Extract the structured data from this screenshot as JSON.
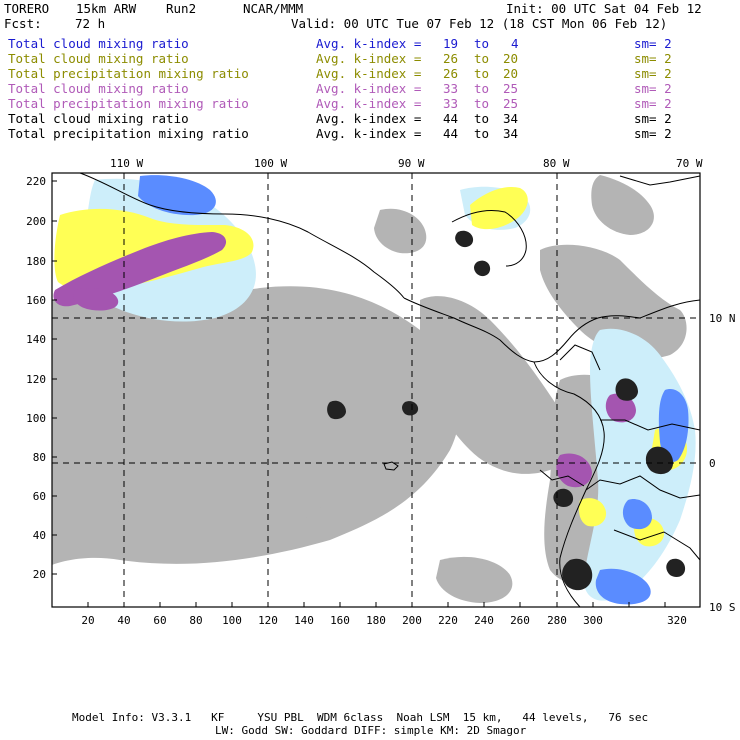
{
  "header": {
    "model": "TORERO",
    "resolution": "15km ARW",
    "run": "Run2",
    "org": "NCAR/MMM",
    "init": "Init: 00 UTC Sat 04 Feb 12",
    "fcst_label": "Fcst:",
    "fcst_value": "72 h",
    "valid": "Valid: 00 UTC Tue 07 Feb 12 (18 CST Mon 06 Feb 12)"
  },
  "legend": [
    {
      "field": "Total cloud mixing ratio",
      "kindex": "Avg. k-index =",
      "from": "19",
      "to_word": "to",
      "to": "4",
      "sm": "sm= 2",
      "color": "#1a1ad0"
    },
    {
      "field": "Total cloud mixing ratio",
      "kindex": "Avg. k-index =",
      "from": "26",
      "to_word": "to",
      "to": "20",
      "sm": "sm= 2",
      "color": "#8c8c00"
    },
    {
      "field": "Total precipitation mixing ratio",
      "kindex": "Avg. k-index =",
      "from": "26",
      "to_word": "to",
      "to": "20",
      "sm": "sm= 2",
      "color": "#8c8c00"
    },
    {
      "field": "Total cloud mixing ratio",
      "kindex": "Avg. k-index =",
      "from": "33",
      "to_word": "to",
      "to": "25",
      "sm": "sm= 2",
      "color": "#b05ab8"
    },
    {
      "field": "Total precipitation mixing ratio",
      "kindex": "Avg. k-index =",
      "from": "33",
      "to_word": "to",
      "to": "25",
      "sm": "sm= 2",
      "color": "#b05ab8"
    },
    {
      "field": "Total cloud mixing ratio",
      "kindex": "Avg. k-index =",
      "from": "44",
      "to_word": "to",
      "to": "34",
      "sm": "sm= 2",
      "color": "#000000"
    },
    {
      "field": "Total precipitation mixing ratio",
      "kindex": "Avg. k-index =",
      "from": "44",
      "to_word": "to",
      "to": "34",
      "sm": "sm= 2",
      "color": "#000000"
    }
  ],
  "map": {
    "lon_labels": [
      "110 W",
      "100 W",
      "90 W",
      "80 W",
      "70 W"
    ],
    "lat_labels": [
      "10 N",
      "0",
      "10 S"
    ],
    "y_ticks": [
      "20",
      "40",
      "60",
      "80",
      "100",
      "120",
      "140",
      "160",
      "180",
      "200",
      "220"
    ],
    "x_ticks": [
      "20",
      "40",
      "60",
      "80",
      "100",
      "120",
      "140",
      "160",
      "180",
      "200",
      "220",
      "240",
      "260",
      "280",
      "300",
      "320"
    ],
    "colors": {
      "gray": "#b4b4b4",
      "darkgray": "#6e6e6e",
      "black": "#222222",
      "yellow": "#ffff55",
      "magenta": "#a455b0",
      "lightblue": "#cdeefa",
      "blue": "#5a8cff",
      "darkblue": "#1414ff"
    }
  },
  "footer": {
    "line1": "Model Info: V3.3.1   KF     YSU PBL  WDM 6class  Noah LSM  15 km,   44 levels,   76 sec",
    "line2": "LW: Godd SW: Goddard DIFF: simple KM: 2D Smagor"
  }
}
